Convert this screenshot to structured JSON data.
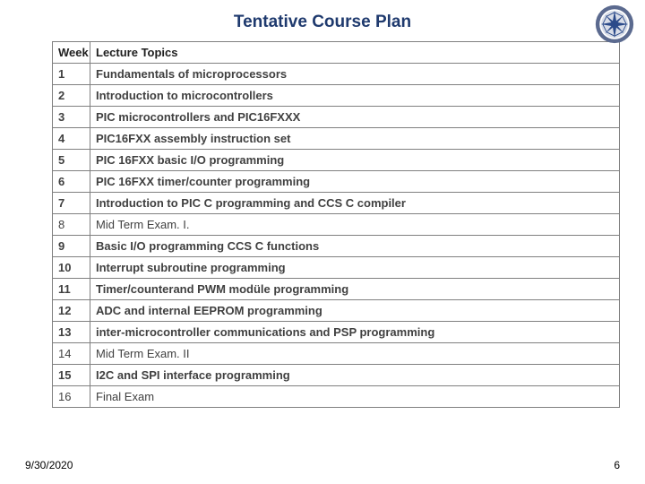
{
  "title": "Tentative Course Plan",
  "columns": [
    "Week",
    "Lecture Topics"
  ],
  "rows": [
    {
      "week": "1",
      "topic": "Fundamentals of microprocessors",
      "bold": true
    },
    {
      "week": "2",
      "topic": "Introduction to microcontrollers",
      "bold": true
    },
    {
      "week": "3",
      "topic": "PIC microcontrollers and PIC16FXXX",
      "bold": true
    },
    {
      "week": "4",
      "topic": "PIC16FXX assembly instruction set",
      "bold": true
    },
    {
      "week": "5",
      "topic": "PIC 16FXX basic I/O programming",
      "bold": true
    },
    {
      "week": "6",
      "topic": "PIC 16FXX timer/counter programming",
      "bold": true
    },
    {
      "week": "7",
      "topic": "Introduction to PIC C programming and CCS C compiler",
      "bold": true
    },
    {
      "week": "8",
      "topic": "Mid Term Exam. I.",
      "bold": false
    },
    {
      "week": "9",
      "topic": "Basic I/O programming CCS C functions",
      "bold": true
    },
    {
      "week": "10",
      "topic": "Interrupt subroutine programming",
      "bold": true
    },
    {
      "week": "11",
      "topic": "Timer/counterand PWM modüle programming",
      "bold": true
    },
    {
      "week": "12",
      "topic": "ADC and internal EEPROM programming",
      "bold": true
    },
    {
      "week": "13",
      "topic": "inter-microcontroller communications and PSP programming",
      "bold": true
    },
    {
      "week": "14",
      "topic": "Mid Term Exam. II",
      "bold": false
    },
    {
      "week": "15",
      "topic": "I2C and SPI interface programming",
      "bold": true
    },
    {
      "week": "16",
      "topic": "Final Exam",
      "bold": false
    }
  ],
  "footer": {
    "date": "9/30/2020",
    "page": "6"
  },
  "colors": {
    "title": "#1f3a6e",
    "border": "#808080",
    "logo_ring_outer": "#5b6a8f",
    "logo_ring_inner": "#ffffff",
    "logo_star": "#2b4a8a"
  }
}
